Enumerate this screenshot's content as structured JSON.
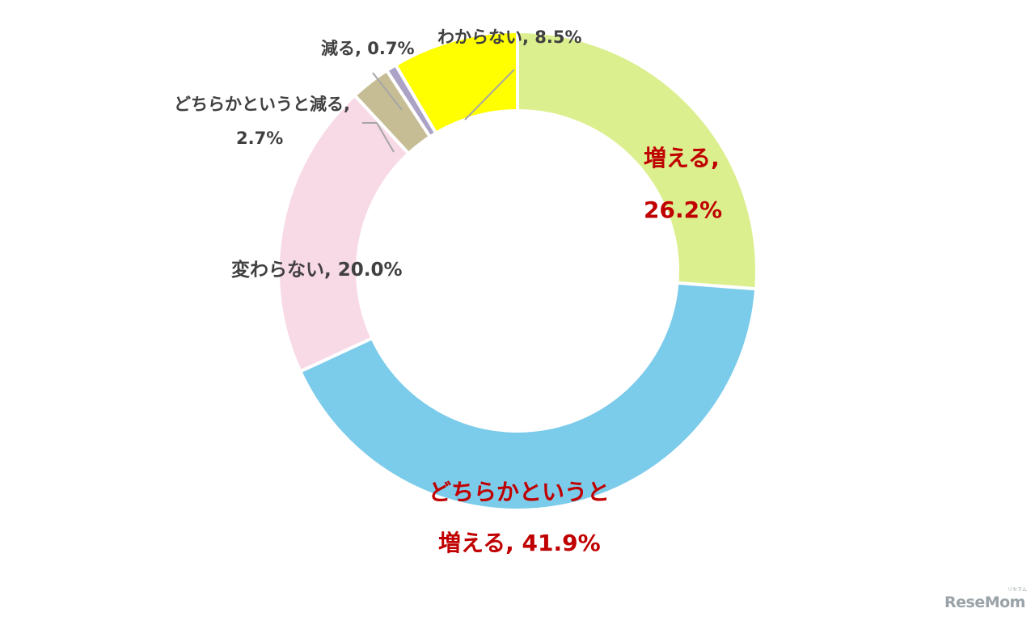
{
  "chart_data": {
    "type": "pie",
    "style": "donut",
    "title": "",
    "legend": "none",
    "label_highlight_color": "#c00000",
    "label_default_color": "#404040",
    "slices": [
      {
        "label_line1": "増える,",
        "label_line2": "26.2%",
        "value": 26.2,
        "color": "#dcef8e",
        "emphasis": true
      },
      {
        "label_line1": "どちらかというと",
        "label_line2": "増える, 41.9%",
        "value": 41.9,
        "color": "#7bcbea",
        "emphasis": true
      },
      {
        "label_line1": "変わらない, 20.0%",
        "label_line2": "",
        "value": 20.0,
        "color": "#f8d9e6",
        "emphasis": false
      },
      {
        "label_line1": "どちらかというと減る,",
        "label_line2": "2.7%",
        "value": 2.7,
        "color": "#c6bd95",
        "emphasis": false
      },
      {
        "label_line1": "減る, 0.7%",
        "label_line2": "",
        "value": 0.7,
        "color": "#aba2c6",
        "emphasis": false
      },
      {
        "label_line1": "わからない, 8.5%",
        "label_line2": "",
        "value": 8.5,
        "color": "#ffff00",
        "emphasis": false
      }
    ]
  },
  "watermark": {
    "text": "ReseMom",
    "ruby": "リセマム"
  }
}
